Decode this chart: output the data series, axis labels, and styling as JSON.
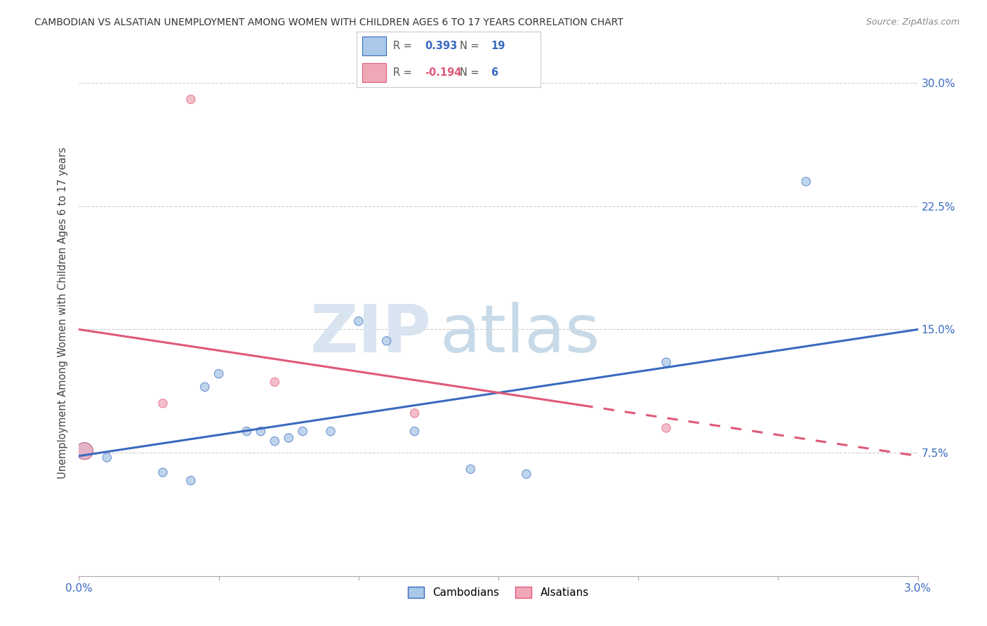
{
  "title": "CAMBODIAN VS ALSATIAN UNEMPLOYMENT AMONG WOMEN WITH CHILDREN AGES 6 TO 17 YEARS CORRELATION CHART",
  "source": "Source: ZipAtlas.com",
  "ylabel": "Unemployment Among Women with Children Ages 6 to 17 years",
  "x_min": 0.0,
  "x_max": 0.03,
  "y_min": 0.0,
  "y_max": 0.32,
  "x_ticks": [
    0.0,
    0.005,
    0.01,
    0.015,
    0.02,
    0.025,
    0.03
  ],
  "x_tick_labels": [
    "0.0%",
    "",
    "",
    "",
    "",
    "",
    "3.0%"
  ],
  "y_ticks": [
    0.0,
    0.075,
    0.15,
    0.225,
    0.3
  ],
  "y_tick_labels": [
    "",
    "7.5%",
    "15.0%",
    "22.5%",
    "30.0%"
  ],
  "cambodian_x": [
    0.0002,
    0.001,
    0.003,
    0.004,
    0.0045,
    0.005,
    0.006,
    0.0065,
    0.007,
    0.0075,
    0.008,
    0.009,
    0.01,
    0.011,
    0.012,
    0.014,
    0.016,
    0.021,
    0.026
  ],
  "cambodian_y": [
    0.076,
    0.072,
    0.063,
    0.058,
    0.115,
    0.123,
    0.088,
    0.088,
    0.082,
    0.084,
    0.088,
    0.088,
    0.155,
    0.143,
    0.088,
    0.065,
    0.062,
    0.13,
    0.24
  ],
  "cambodian_sizes": [
    300,
    80,
    80,
    80,
    80,
    80,
    80,
    80,
    80,
    80,
    80,
    80,
    80,
    80,
    80,
    80,
    80,
    80,
    80
  ],
  "alsatian_x": [
    0.0002,
    0.003,
    0.004,
    0.007,
    0.012,
    0.021
  ],
  "alsatian_y": [
    0.076,
    0.105,
    0.29,
    0.118,
    0.099,
    0.09
  ],
  "alsatian_sizes": [
    300,
    80,
    80,
    80,
    80,
    80
  ],
  "cambodian_color": "#aac8e8",
  "alsatian_color": "#f0a8b8",
  "cambodian_line_color": "#3a6abf",
  "alsatian_line_color": "#e05878",
  "R_cambodian": 0.393,
  "N_cambodian": 19,
  "R_alsatian": -0.194,
  "N_alsatian": 6,
  "watermark_zip": "ZIP",
  "watermark_atlas": "atlas",
  "background_color": "#ffffff",
  "grid_color": "#cccccc",
  "cam_line_y0": 0.073,
  "cam_line_y1": 0.15,
  "als_line_y0": 0.15,
  "als_line_y1": 0.073
}
